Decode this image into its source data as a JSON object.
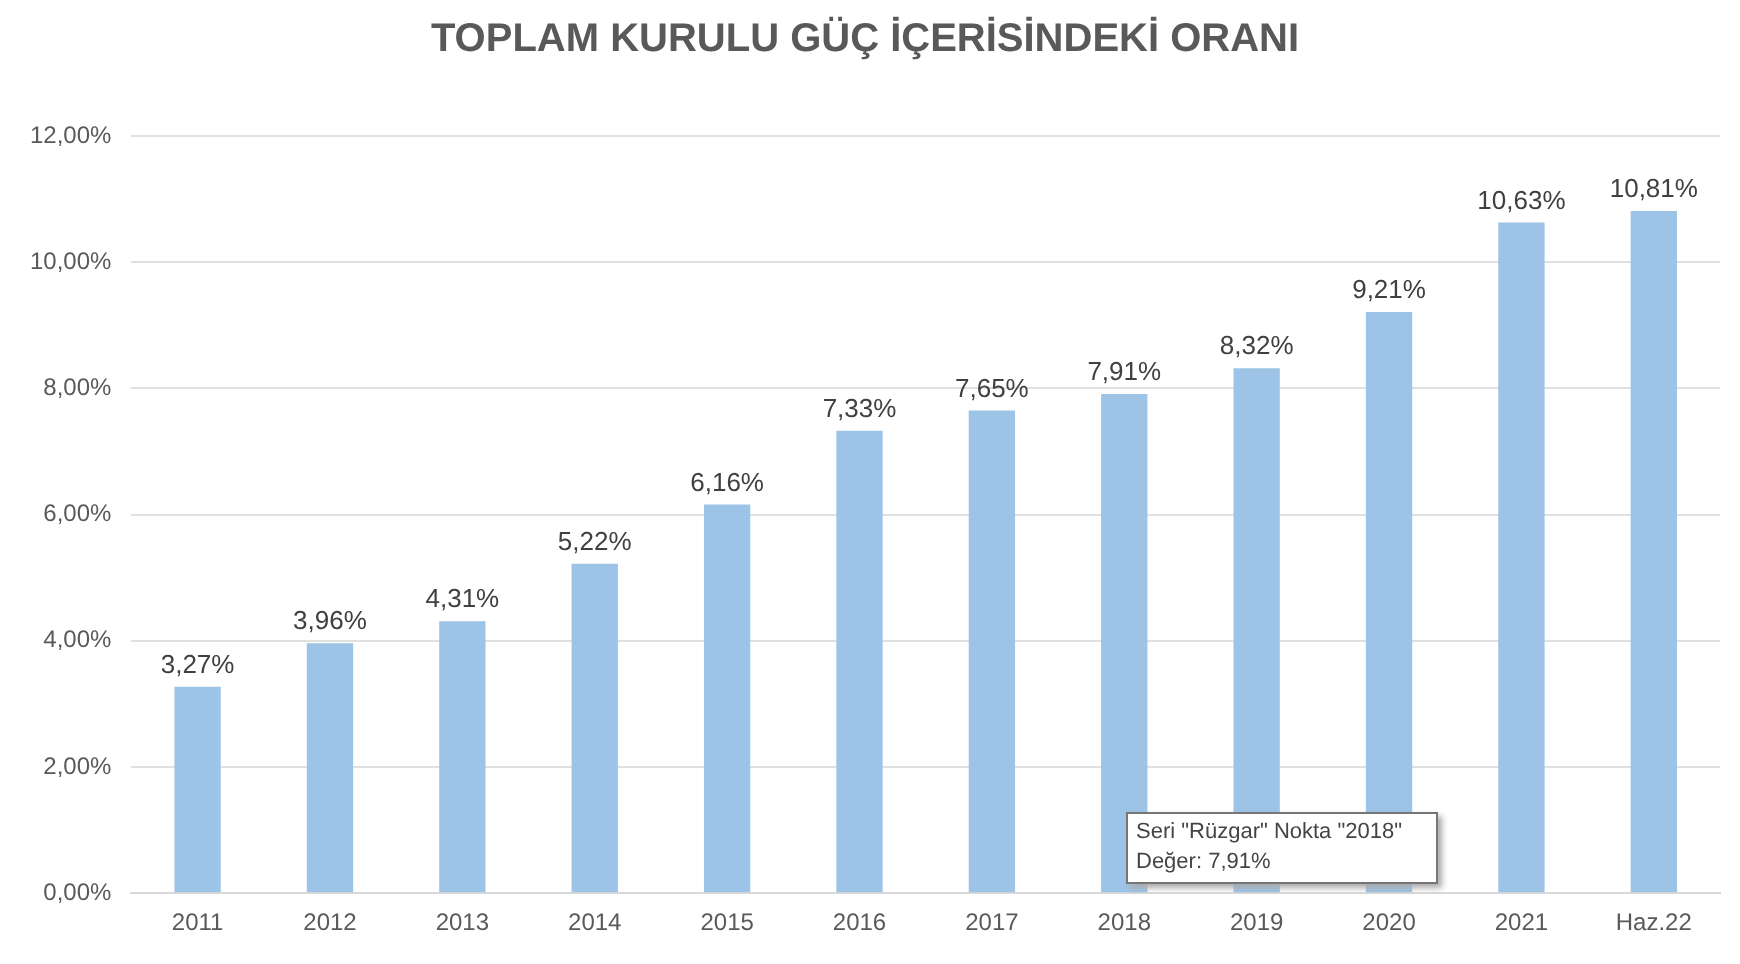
{
  "chart_data": {
    "type": "bar",
    "title": "TOPLAM KURULU GÜÇ İÇERİSİNDEKİ ORANI",
    "categories": [
      "2011",
      "2012",
      "2013",
      "2014",
      "2015",
      "2016",
      "2017",
      "2018",
      "2019",
      "2020",
      "2021",
      "Haz.22"
    ],
    "values": [
      3.27,
      3.96,
      4.31,
      5.22,
      6.16,
      7.33,
      7.65,
      7.91,
      8.32,
      9.21,
      10.63,
      10.81
    ],
    "value_labels": [
      "3,27%",
      "3,96%",
      "4,31%",
      "5,22%",
      "6,16%",
      "7,33%",
      "7,65%",
      "7,91%",
      "8,32%",
      "9,21%",
      "10,63%",
      "10,81%"
    ],
    "color": "#9dc3e6",
    "ylim": [
      0,
      12
    ],
    "yticks": [
      {
        "value": 0,
        "label": "0,00%"
      },
      {
        "value": 2,
        "label": "2,00%"
      },
      {
        "value": 4,
        "label": "4,00%"
      },
      {
        "value": 6,
        "label": "6,00%"
      },
      {
        "value": 8,
        "label": "8,00%"
      },
      {
        "value": 10,
        "label": "10,00%"
      },
      {
        "value": 12,
        "label": "12,00%"
      }
    ],
    "grid": "y",
    "legend": false,
    "annotations": [
      "Seri \"Rüzgar\" Nokta \"2018\"",
      "Değer: 7,91%"
    ]
  }
}
